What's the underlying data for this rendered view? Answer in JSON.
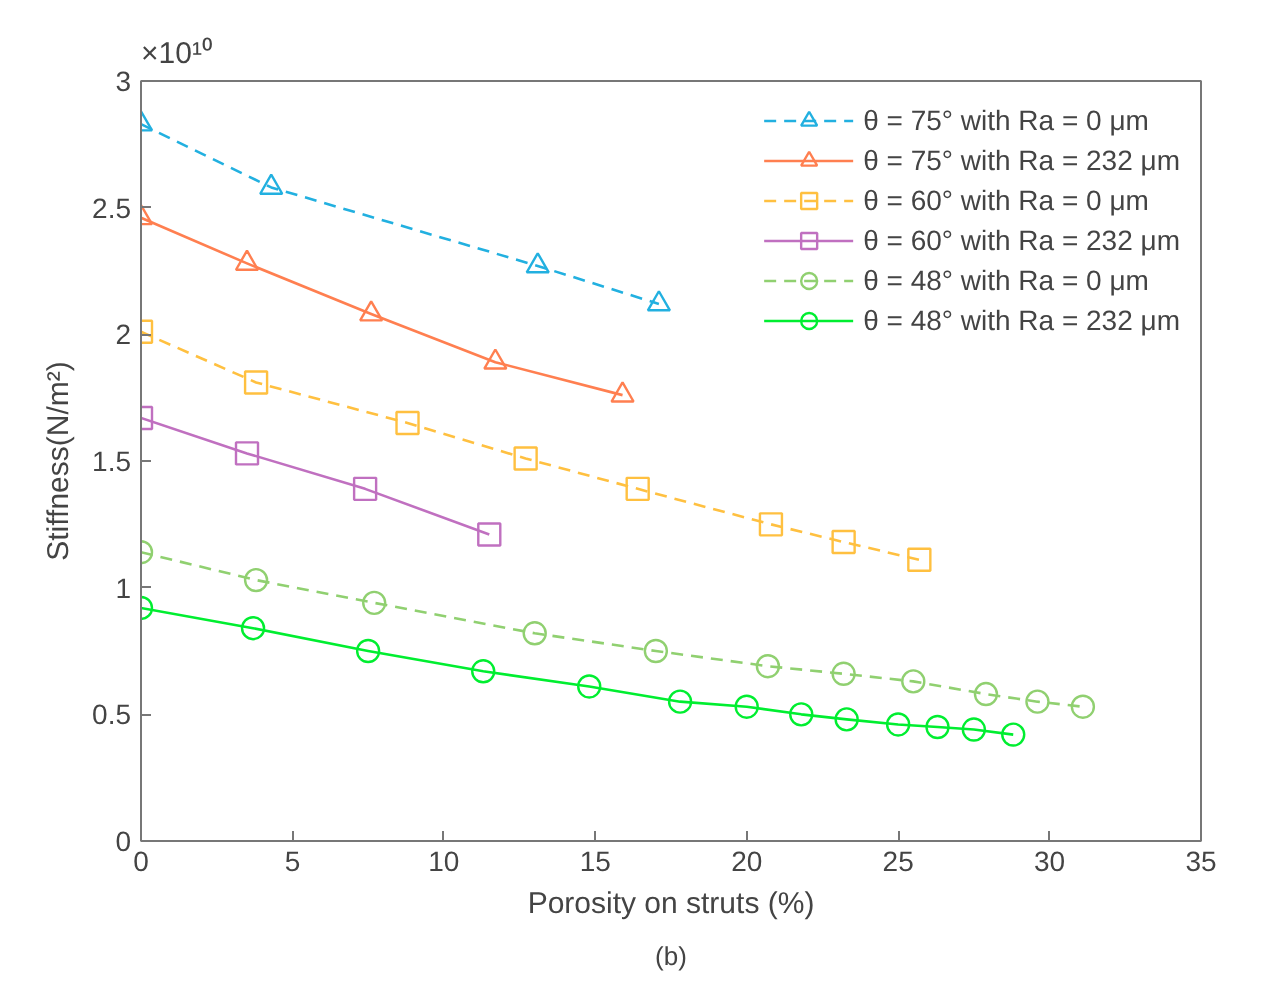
{
  "chart_data": {
    "type": "line",
    "xlabel": "Porosity on struts (%)",
    "ylabel": "Stiffness(N/m²)",
    "xlim": [
      0,
      35
    ],
    "xticks": [
      0,
      5,
      10,
      15,
      20,
      25,
      30,
      35
    ],
    "ylim": [
      0,
      3
    ],
    "yticks": [
      0,
      0.5,
      1,
      1.5,
      2,
      2.5,
      3
    ],
    "grid": false,
    "legend": "top right",
    "annotations": [
      "×10¹⁰",
      "(b)"
    ],
    "series": [
      {
        "name": "θ = 75° with Ra = 0 μm",
        "color": "#22b0e0",
        "marker": "triangle",
        "line_style": "dashed",
        "x": [
          0,
          4.3,
          13.1,
          17.1
        ],
        "values": [
          2.83,
          2.58,
          2.27,
          2.12
        ]
      },
      {
        "name": "θ = 75° with Ra = 232 μm",
        "color": "#ff7f50",
        "marker": "triangle",
        "line_style": "solid",
        "x": [
          0,
          3.5,
          7.6,
          11.7,
          15.9
        ],
        "values": [
          2.46,
          2.28,
          2.08,
          1.89,
          1.76
        ]
      },
      {
        "name": "θ = 60° with Ra = 0 μm",
        "color": "#ffc040",
        "marker": "square",
        "line_style": "dashed",
        "x": [
          0,
          3.8,
          8.8,
          12.7,
          16.4,
          20.8,
          23.2,
          25.7
        ],
        "values": [
          2.01,
          1.81,
          1.65,
          1.51,
          1.39,
          1.25,
          1.18,
          1.11
        ]
      },
      {
        "name": "θ = 60° with Ra = 232 μm",
        "color": "#c070c0",
        "marker": "square",
        "line_style": "solid",
        "x": [
          0,
          3.5,
          7.4,
          11.5
        ],
        "values": [
          1.67,
          1.53,
          1.39,
          1.21
        ]
      },
      {
        "name": "θ = 48° with Ra = 0 μm",
        "color": "#90d070",
        "marker": "circle",
        "line_style": "dashed",
        "x": [
          0,
          3.8,
          7.7,
          13.0,
          17.0,
          20.7,
          23.2,
          25.5,
          27.9,
          29.6,
          31.1
        ],
        "values": [
          1.14,
          1.03,
          0.94,
          0.82,
          0.75,
          0.69,
          0.66,
          0.63,
          0.58,
          0.55,
          0.53
        ]
      },
      {
        "name": "θ = 48° with Ra = 232 μm",
        "color": "#00ee30",
        "marker": "circle",
        "line_style": "solid",
        "x": [
          0,
          3.7,
          7.5,
          11.3,
          14.8,
          17.8,
          20.0,
          21.8,
          23.3,
          25.0,
          26.3,
          27.5,
          28.8
        ],
        "values": [
          0.92,
          0.84,
          0.75,
          0.67,
          0.61,
          0.55,
          0.53,
          0.5,
          0.48,
          0.46,
          0.45,
          0.44,
          0.42
        ]
      }
    ]
  }
}
